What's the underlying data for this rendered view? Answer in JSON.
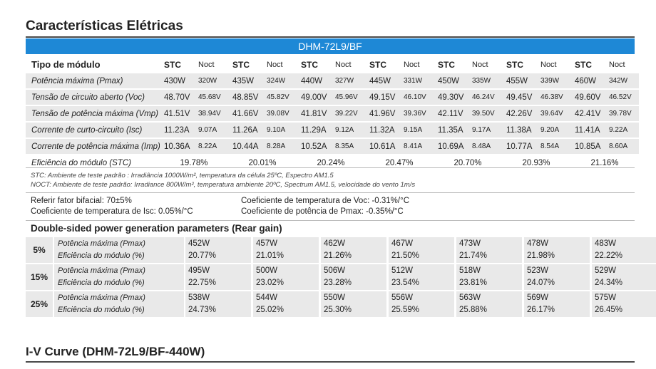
{
  "page_title": "Características Elétricas",
  "model_header": "DHM-72L9/BF",
  "table": {
    "header_label": "Tipo de módulo",
    "stc_label": "STC",
    "noct_label": "Noct",
    "rows": [
      {
        "label": "Potência máxima (Pmax)",
        "stc": [
          "430W",
          "435W",
          "440W",
          "445W",
          "450W",
          "455W",
          "460W"
        ],
        "noct": [
          "320W",
          "324W",
          "327W",
          "331W",
          "335W",
          "339W",
          "342W"
        ]
      },
      {
        "label": "Tensão de circuito aberto (Voc)",
        "stc": [
          "48.70V",
          "48.85V",
          "49.00V",
          "49.15V",
          "49.30V",
          "49.45V",
          "49.60V"
        ],
        "noct": [
          "45.68V",
          "45.82V",
          "45.96V",
          "46.10V",
          "46.24V",
          "46.38V",
          "46.52V"
        ]
      },
      {
        "label": "Tensão de potência máxima (Vmp)",
        "stc": [
          "41.51V",
          "41.66V",
          "41.81V",
          "41.96V",
          "42.11V",
          "42.26V",
          "42.41V"
        ],
        "noct": [
          "38.94V",
          "39.08V",
          "39.22V",
          "39.36V",
          "39.50V",
          "39.64V",
          "39.78V"
        ]
      },
      {
        "label": "Corrente de curto-circuito (Isc)",
        "stc": [
          "11.23A",
          "11.26A",
          "11.29A",
          "11.32A",
          "11.35A",
          "11.38A",
          "11.41A"
        ],
        "noct": [
          "9.07A",
          "9.10A",
          "9.12A",
          "9.15A",
          "9.17A",
          "9.20A",
          "9.22A"
        ]
      },
      {
        "label": "Corrente de potência máxima (Imp)",
        "stc": [
          "10.36A",
          "10.44A",
          "10.52A",
          "10.61A",
          "10.69A",
          "10.77A",
          "10.85A"
        ],
        "noct": [
          "8.22A",
          "8.28A",
          "8.35A",
          "8.41A",
          "8.48A",
          "8.54A",
          "8.60A"
        ]
      }
    ],
    "efficiency_label": "Eficiência do módulo (STC)",
    "efficiency": [
      "19.78%",
      "20.01%",
      "20.24%",
      "20.47%",
      "20.70%",
      "20.93%",
      "21.16%"
    ]
  },
  "notes": {
    "stc": "STC: Ambiente de teste padrão : Irradiância 1000W/m², temperatura da célula 25ºC, Espectro AM1.5",
    "noct": "NOCT: Ambiente de teste padrão: Irradiance 800W/m², temperatura ambiente 20ºC, Spectrum AM1.5, velocidade do vento 1m/s"
  },
  "specs": {
    "bifacial": "Referir fator bifacial: 70±5%",
    "isc_temp": "Coeficiente de temperatura de Isc: 0.05%/°C",
    "voc_temp": "Coeficiente de temperatura de Voc: -0.31%/°C",
    "pmax_temp": "Coeficiente de potência de Pmax: -0.35%/°C"
  },
  "rear": {
    "title": "Double-sided power generation parameters (Rear gain)",
    "power_label": "Potência máxima (Pmax)",
    "eff_label": "Eficiência do módulo (%)",
    "blocks": [
      {
        "gain": "5%",
        "power": [
          "452W",
          "457W",
          "462W",
          "467W",
          "473W",
          "478W",
          "483W"
        ],
        "eff": [
          "20.77%",
          "21.01%",
          "21.26%",
          "21.50%",
          "21.74%",
          "21.98%",
          "22.22%"
        ]
      },
      {
        "gain": "15%",
        "power": [
          "495W",
          "500W",
          "506W",
          "512W",
          "518W",
          "523W",
          "529W"
        ],
        "eff": [
          "22.75%",
          "23.02%",
          "23.28%",
          "23.54%",
          "23.81%",
          "24.07%",
          "24.34%"
        ]
      },
      {
        "gain": "25%",
        "power": [
          "538W",
          "544W",
          "550W",
          "556W",
          "563W",
          "569W",
          "575W"
        ],
        "eff": [
          "24.73%",
          "25.02%",
          "25.30%",
          "25.59%",
          "25.88%",
          "26.17%",
          "26.45%"
        ]
      }
    ]
  },
  "iv_title": "I-V Curve (DHM-72L9/BF-440W)"
}
